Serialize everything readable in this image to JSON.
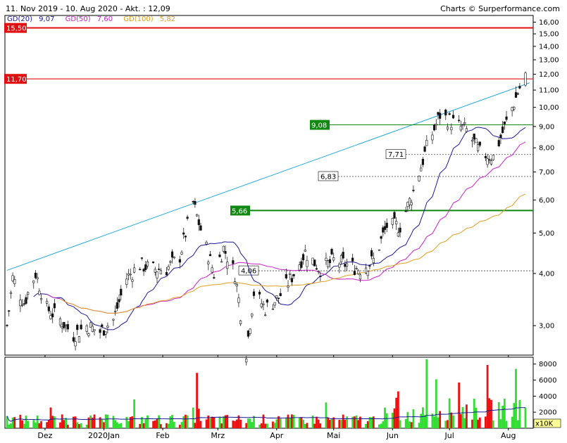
{
  "header": {
    "title": "11. Nov 2019 - 10. Aug 2020 - Akt. : 12,09",
    "credit": "Charts © Surperformance.com"
  },
  "legend": [
    {
      "label": "GD(20)",
      "value": "9,07",
      "color": "#1a1a99"
    },
    {
      "label": "GD(50)",
      "value": "7,60",
      "color": "#cc22cc"
    },
    {
      "label": "GD(100)",
      "value": "5,82",
      "color": "#e0a020"
    }
  ],
  "chart_data": [
    {
      "type": "candlestick",
      "scale": "log",
      "ylim": [
        2.55,
        16.6
      ],
      "y_ticks": [
        "3,00",
        "4,00",
        "5,00",
        "6,00",
        "7,00",
        "8,00",
        "9,00",
        "10,00",
        "11,00",
        "12,00",
        "13,00",
        "14,00",
        "15,00",
        "16,00"
      ],
      "x_tick_labels": [
        "Dez",
        "2020Jan",
        "Feb",
        "Mrz",
        "Apr",
        "Mai",
        "Jun",
        "Jul",
        "Aug"
      ],
      "x_tick_dates": [
        "2019-12-01",
        "2020-01-01",
        "2020-02-01",
        "2020-03-01",
        "2020-04-01",
        "2020-05-01",
        "2020-06-01",
        "2020-07-01",
        "2020-08-01"
      ],
      "date_range": [
        "2019-11-11",
        "2020-08-10"
      ],
      "price_anchors": [
        {
          "date": "2019-11-11",
          "close": 3.0
        },
        {
          "date": "2019-11-14",
          "close": 3.9
        },
        {
          "date": "2019-11-20",
          "close": 3.4
        },
        {
          "date": "2019-11-26",
          "close": 4.0
        },
        {
          "date": "2019-12-02",
          "close": 3.3
        },
        {
          "date": "2019-12-09",
          "close": 3.1
        },
        {
          "date": "2019-12-16",
          "close": 2.85
        },
        {
          "date": "2019-12-23",
          "close": 3.0
        },
        {
          "date": "2019-12-30",
          "close": 2.9
        },
        {
          "date": "2020-01-06",
          "close": 3.1
        },
        {
          "date": "2020-01-13",
          "close": 3.9
        },
        {
          "date": "2020-01-20",
          "close": 4.2
        },
        {
          "date": "2020-01-27",
          "close": 4.1
        },
        {
          "date": "2020-02-03",
          "close": 4.1
        },
        {
          "date": "2020-02-10",
          "close": 4.4
        },
        {
          "date": "2020-02-17",
          "close": 5.9
        },
        {
          "date": "2020-02-21",
          "close": 5.1
        },
        {
          "date": "2020-02-28",
          "close": 4.0
        },
        {
          "date": "2020-03-04",
          "close": 4.6
        },
        {
          "date": "2020-03-10",
          "close": 4.0
        },
        {
          "date": "2020-03-16",
          "close": 2.6
        },
        {
          "date": "2020-03-20",
          "close": 3.6
        },
        {
          "date": "2020-03-26",
          "close": 3.3
        },
        {
          "date": "2020-04-02",
          "close": 3.5
        },
        {
          "date": "2020-04-10",
          "close": 4.0
        },
        {
          "date": "2020-04-16",
          "close": 4.5
        },
        {
          "date": "2020-04-24",
          "close": 4.1
        },
        {
          "date": "2020-05-01",
          "close": 4.3
        },
        {
          "date": "2020-05-08",
          "close": 4.2
        },
        {
          "date": "2020-05-15",
          "close": 4.1
        },
        {
          "date": "2020-05-22",
          "close": 4.3
        },
        {
          "date": "2020-05-29",
          "close": 5.2
        },
        {
          "date": "2020-06-05",
          "close": 5.2
        },
        {
          "date": "2020-06-12",
          "close": 6.3
        },
        {
          "date": "2020-06-19",
          "close": 8.0
        },
        {
          "date": "2020-06-26",
          "close": 9.6
        },
        {
          "date": "2020-07-03",
          "close": 9.2
        },
        {
          "date": "2020-07-10",
          "close": 8.8
        },
        {
          "date": "2020-07-17",
          "close": 7.8
        },
        {
          "date": "2020-07-24",
          "close": 7.6
        },
        {
          "date": "2020-07-31",
          "close": 9.2
        },
        {
          "date": "2020-08-10",
          "close": 12.09
        }
      ],
      "series": [
        {
          "name": "GD(20)",
          "color": "#1a1a99"
        },
        {
          "name": "GD(50)",
          "color": "#cc22cc"
        },
        {
          "name": "GD(100)",
          "color": "#e0a020"
        }
      ],
      "resistance_lines": [
        {
          "value": 15.5,
          "label": "15,50",
          "color": "#e01010"
        },
        {
          "value": 11.7,
          "label": "11,70",
          "color": "#e01010"
        }
      ],
      "support_lines": [
        {
          "value": 9.08,
          "label": "9,08",
          "color": "#118811"
        },
        {
          "value": 5.66,
          "label": "5,66",
          "color": "#118811"
        }
      ],
      "dotted_levels": [
        {
          "value": 7.71,
          "label": "7,71"
        },
        {
          "value": 6.83,
          "label": "6,83"
        },
        {
          "value": 4.06,
          "label": "4,06"
        }
      ],
      "trend_line": {
        "from": {
          "date": "2019-11-11",
          "value": 4.07
        },
        "to": {
          "date": "2020-08-10",
          "value": 11.45
        },
        "color": "#22aadd"
      }
    },
    {
      "type": "bar",
      "title": "volume",
      "unit_label": "x10K",
      "ylim": [
        0,
        8500
      ],
      "y_ticks": [
        "2000",
        "4000",
        "6000",
        "8000"
      ],
      "peaks": [
        {
          "date": "2020-02-19",
          "value": 6900
        },
        {
          "date": "2020-06-19",
          "value": 8600
        },
        {
          "date": "2020-06-24",
          "value": 6100
        },
        {
          "date": "2020-07-06",
          "value": 5700
        },
        {
          "date": "2020-08-05",
          "value": 7400
        }
      ]
    }
  ]
}
